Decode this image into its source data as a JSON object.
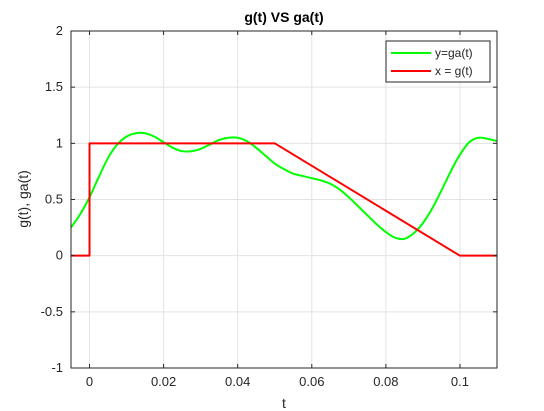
{
  "chart_data": {
    "type": "line",
    "title": "g(t) VS ga(t)",
    "xlabel": "t",
    "ylabel": "g(t), ga(t)",
    "xlim": [
      -0.005,
      0.11
    ],
    "ylim": [
      -1,
      2
    ],
    "grid": true,
    "legend_placement": "top-right",
    "xticks": [
      0,
      0.02,
      0.04,
      0.06,
      0.08,
      0.1
    ],
    "xtick_labels": [
      "0",
      "0.02",
      "0.04",
      "0.06",
      "0.08",
      "0.1"
    ],
    "yticks": [
      -1,
      -0.5,
      0,
      0.5,
      1,
      1.5,
      2
    ],
    "ytick_labels": [
      "-1",
      "-0.5",
      "0",
      "0.5",
      "1",
      "1.5",
      "2"
    ],
    "series": [
      {
        "name": "y=ga(t)",
        "color": "#00ff00",
        "x": [
          -0.005,
          -0.0025,
          0,
          0.0025,
          0.005,
          0.0075,
          0.01,
          0.0125,
          0.015,
          0.0175,
          0.02,
          0.0225,
          0.025,
          0.0275,
          0.03,
          0.0325,
          0.035,
          0.0375,
          0.04,
          0.0425,
          0.045,
          0.0475,
          0.05,
          0.0525,
          0.055,
          0.0575,
          0.06,
          0.0625,
          0.065,
          0.0675,
          0.07,
          0.0725,
          0.075,
          0.0775,
          0.08,
          0.0825,
          0.085,
          0.0875,
          0.09,
          0.0925,
          0.095,
          0.0975,
          0.1,
          0.1025,
          0.105,
          0.1075,
          0.11
        ],
        "y": [
          0.25,
          0.37,
          0.52,
          0.7,
          0.87,
          0.99,
          1.06,
          1.09,
          1.09,
          1.06,
          1.01,
          0.96,
          0.93,
          0.93,
          0.95,
          0.99,
          1.03,
          1.05,
          1.05,
          1.02,
          0.96,
          0.89,
          0.82,
          0.77,
          0.73,
          0.71,
          0.69,
          0.67,
          0.64,
          0.59,
          0.52,
          0.44,
          0.36,
          0.28,
          0.21,
          0.16,
          0.15,
          0.2,
          0.29,
          0.42,
          0.58,
          0.75,
          0.9,
          1.01,
          1.05,
          1.04,
          1.02
        ]
      },
      {
        "name": "x = g(t)",
        "color": "#ff0000",
        "x": [
          -0.005,
          0,
          0,
          0.05,
          0.1,
          0.11
        ],
        "y": [
          0,
          0,
          1,
          1,
          0,
          0
        ]
      }
    ]
  }
}
